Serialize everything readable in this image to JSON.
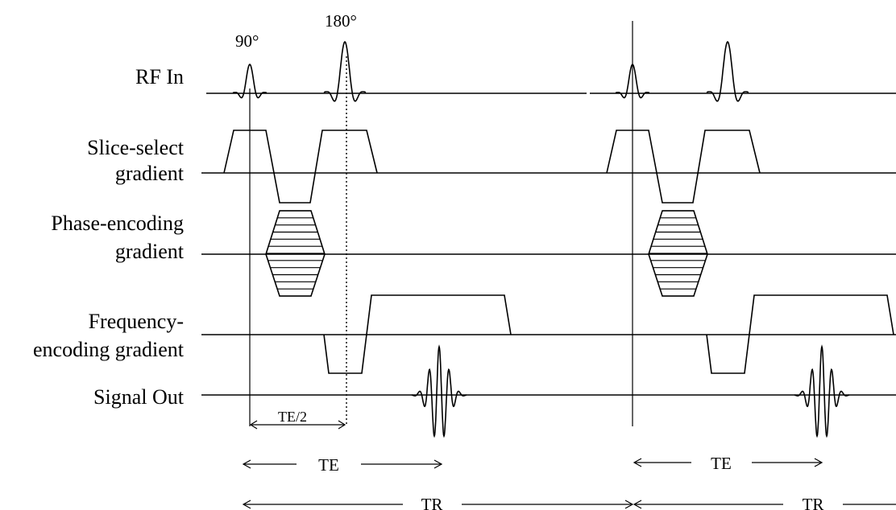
{
  "rows": {
    "rf": [
      "RF In"
    ],
    "slice": [
      "Slice-select",
      "gradient"
    ],
    "phase": [
      "Phase-encoding",
      "gradient"
    ],
    "freq": [
      "Frequency-",
      "encoding gradient"
    ],
    "signal": [
      "Signal Out"
    ]
  },
  "pulses": {
    "p90": "90°",
    "p180": "180°"
  },
  "intervals": {
    "te_half": "TE/2",
    "te": "TE",
    "tr": "TR"
  },
  "repetitions": 2
}
